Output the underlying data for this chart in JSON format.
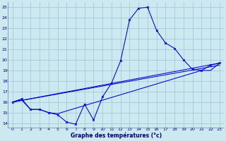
{
  "xlabel": "Graphe des températures (°c)",
  "bg_color": "#cce8f0",
  "grid_color": "#99bbcc",
  "line_color": "#0000cc",
  "xlim_min": -0.5,
  "xlim_max": 23.5,
  "ylim_min": 13.6,
  "ylim_max": 25.5,
  "xticks": [
    0,
    1,
    2,
    3,
    4,
    5,
    6,
    7,
    8,
    9,
    10,
    11,
    12,
    13,
    14,
    15,
    16,
    17,
    18,
    19,
    20,
    21,
    22,
    23
  ],
  "yticks": [
    14,
    15,
    16,
    17,
    18,
    19,
    20,
    21,
    22,
    23,
    24,
    25
  ],
  "main_x": [
    0,
    1,
    2,
    3,
    4,
    5,
    6,
    7,
    8,
    9,
    10,
    11,
    12,
    13,
    14,
    15,
    16,
    17,
    18,
    19,
    20,
    21,
    22,
    23
  ],
  "main_y": [
    16.0,
    16.3,
    15.3,
    15.3,
    15.0,
    14.8,
    14.1,
    13.9,
    15.8,
    14.3,
    16.5,
    17.8,
    19.9,
    23.8,
    24.9,
    25.0,
    22.8,
    21.6,
    21.1,
    20.0,
    19.1,
    19.0,
    19.5,
    19.7
  ],
  "trend1_x": [
    0,
    23
  ],
  "trend1_y": [
    16.0,
    19.7
  ],
  "trend2_x": [
    0,
    23
  ],
  "trend2_y": [
    16.0,
    19.5
  ],
  "partial_x": [
    0,
    1,
    2,
    3,
    4,
    5,
    21,
    22,
    23
  ],
  "partial_y": [
    16.0,
    16.2,
    15.3,
    15.3,
    15.0,
    14.9,
    19.0,
    19.0,
    19.7
  ],
  "xlabel_fontsize": 5.5,
  "tick_fontsize": 4.5,
  "lw": 0.75
}
